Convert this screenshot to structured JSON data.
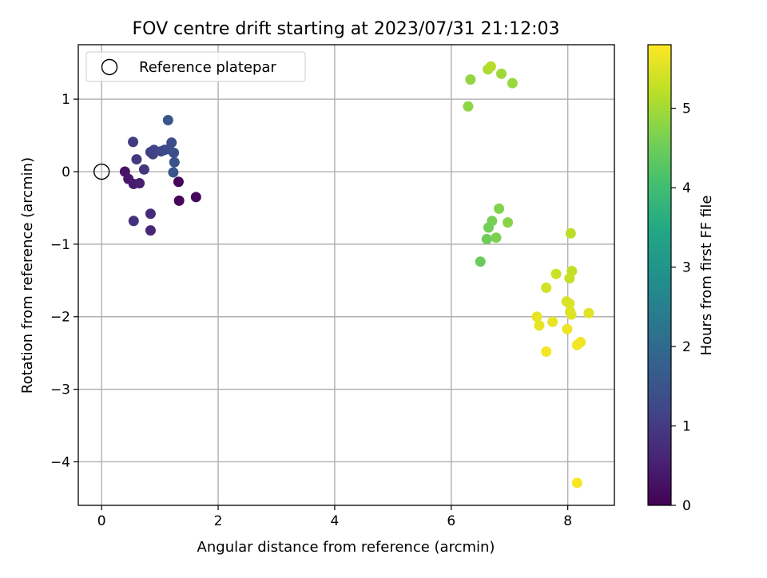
{
  "chart_data": {
    "type": "scatter",
    "title": "FOV centre drift starting at 2023/07/31 21:12:03",
    "xlabel": "Angular distance from reference (arcmin)",
    "ylabel": "Rotation from reference (arcmin)",
    "xlim": [
      -0.4,
      8.8
    ],
    "ylim": [
      -4.6,
      1.75
    ],
    "xticks": [
      0,
      2,
      4,
      6,
      8
    ],
    "yticks": [
      1,
      0,
      -1,
      -2,
      -3,
      -4
    ],
    "xtick_labels": [
      "0",
      "2",
      "4",
      "6",
      "8"
    ],
    "ytick_labels": [
      "1",
      "0",
      "−1",
      "−2",
      "−3",
      "−4"
    ],
    "grid": true,
    "legend": {
      "position": "top-left",
      "label": "Reference platepar"
    },
    "reference_point": {
      "x": 0,
      "y": 0
    },
    "colorbar": {
      "label": "Hours from first FF file",
      "range": [
        0,
        5.8
      ],
      "ticks": [
        0,
        1,
        2,
        3,
        4,
        5
      ],
      "tick_labels": [
        "0",
        "1",
        "2",
        "3",
        "4",
        "5"
      ],
      "colormap": "viridis"
    },
    "points": [
      {
        "x": 1.32,
        "y": -0.14,
        "h": 0.05
      },
      {
        "x": 1.33,
        "y": -0.4,
        "h": 0.08
      },
      {
        "x": 1.62,
        "y": -0.35,
        "h": 0.12
      },
      {
        "x": 0.4,
        "y": 0.0,
        "h": 0.3
      },
      {
        "x": 0.46,
        "y": -0.1,
        "h": 0.38
      },
      {
        "x": 0.55,
        "y": -0.17,
        "h": 0.45
      },
      {
        "x": 0.65,
        "y": -0.16,
        "h": 0.52
      },
      {
        "x": 0.84,
        "y": -0.81,
        "h": 0.6
      },
      {
        "x": 0.84,
        "y": -0.58,
        "h": 0.7
      },
      {
        "x": 0.55,
        "y": -0.68,
        "h": 0.8
      },
      {
        "x": 0.73,
        "y": 0.03,
        "h": 0.9
      },
      {
        "x": 0.6,
        "y": 0.17,
        "h": 0.95
      },
      {
        "x": 0.54,
        "y": 0.41,
        "h": 1.0
      },
      {
        "x": 0.84,
        "y": 0.27,
        "h": 1.05
      },
      {
        "x": 0.88,
        "y": 0.24,
        "h": 1.1
      },
      {
        "x": 0.9,
        "y": 0.3,
        "h": 1.15
      },
      {
        "x": 1.02,
        "y": 0.28,
        "h": 1.2
      },
      {
        "x": 1.08,
        "y": 0.3,
        "h": 1.25
      },
      {
        "x": 1.15,
        "y": 0.31,
        "h": 1.3
      },
      {
        "x": 1.2,
        "y": 0.4,
        "h": 1.35
      },
      {
        "x": 1.24,
        "y": 0.26,
        "h": 1.4
      },
      {
        "x": 1.25,
        "y": 0.13,
        "h": 1.45
      },
      {
        "x": 1.23,
        "y": -0.01,
        "h": 1.5
      },
      {
        "x": 1.14,
        "y": 0.71,
        "h": 1.55
      },
      {
        "x": 6.5,
        "y": -1.24,
        "h": 4.45
      },
      {
        "x": 6.61,
        "y": -0.93,
        "h": 4.5
      },
      {
        "x": 6.64,
        "y": -0.77,
        "h": 4.55
      },
      {
        "x": 6.7,
        "y": -0.68,
        "h": 4.6
      },
      {
        "x": 6.77,
        "y": -0.91,
        "h": 4.65
      },
      {
        "x": 6.82,
        "y": -0.51,
        "h": 4.7
      },
      {
        "x": 6.97,
        "y": -0.7,
        "h": 4.75
      },
      {
        "x": 6.29,
        "y": 0.9,
        "h": 4.8
      },
      {
        "x": 6.33,
        "y": 1.27,
        "h": 4.85
      },
      {
        "x": 7.05,
        "y": 1.22,
        "h": 4.9
      },
      {
        "x": 6.86,
        "y": 1.35,
        "h": 4.95
      },
      {
        "x": 6.63,
        "y": 1.41,
        "h": 5.05
      },
      {
        "x": 6.68,
        "y": 1.45,
        "h": 5.15
      },
      {
        "x": 8.05,
        "y": -0.85,
        "h": 5.2
      },
      {
        "x": 8.07,
        "y": -1.37,
        "h": 5.25
      },
      {
        "x": 8.03,
        "y": -1.47,
        "h": 5.3
      },
      {
        "x": 7.8,
        "y": -1.41,
        "h": 5.35
      },
      {
        "x": 7.63,
        "y": -1.6,
        "h": 5.4
      },
      {
        "x": 7.98,
        "y": -1.79,
        "h": 5.45
      },
      {
        "x": 8.03,
        "y": -1.82,
        "h": 5.48
      },
      {
        "x": 8.04,
        "y": -1.93,
        "h": 5.5
      },
      {
        "x": 8.06,
        "y": -1.97,
        "h": 5.52
      },
      {
        "x": 8.36,
        "y": -1.95,
        "h": 5.55
      },
      {
        "x": 7.47,
        "y": -2.0,
        "h": 5.58
      },
      {
        "x": 7.51,
        "y": -2.12,
        "h": 5.6
      },
      {
        "x": 7.74,
        "y": -2.07,
        "h": 5.62
      },
      {
        "x": 7.99,
        "y": -2.17,
        "h": 5.65
      },
      {
        "x": 8.22,
        "y": -2.35,
        "h": 5.68
      },
      {
        "x": 8.16,
        "y": -2.39,
        "h": 5.7
      },
      {
        "x": 7.63,
        "y": -2.48,
        "h": 5.72
      },
      {
        "x": 8.16,
        "y": -4.29,
        "h": 5.75
      }
    ]
  }
}
